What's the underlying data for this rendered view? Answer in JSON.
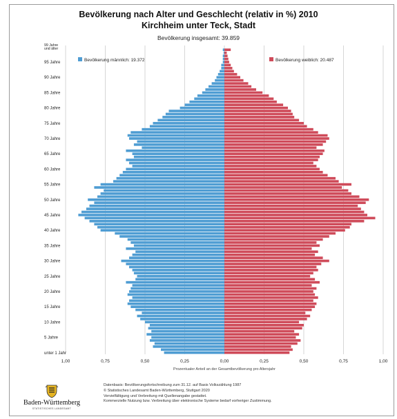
{
  "title": "Bevölkerung nach Alter und Geschlecht (relativ in %) 2010",
  "subtitle": "Kirchheim unter Teck, Stadt",
  "total": "Bevölkerung insgesamt: 39.859",
  "logo": {
    "name": "Baden-Württemberg",
    "sub": "STATISTISCHES LANDESAMT",
    "icon": "coat-of-arms-icon"
  },
  "footer": [
    "Datenbasis: Bevölkerungsfortschreibung zum 31.12. auf Basis Volkszählung 1987",
    "© Statistisches Landesamt Baden-Württemberg, Stuttgart 2020",
    "Vervielfältigung und Verbreitung mit Quellenangabe gestattet.",
    "Kommerzielle Nutzung bzw. Verbreitung über elektronische Systeme bedarf vorheriger Zustimmung."
  ],
  "colors": {
    "male": "#4f9dd3",
    "female": "#cf4b5a",
    "grid": "#bbbbbb",
    "text": "#222222"
  },
  "chart_data": {
    "type": "bar",
    "orientation": "horizontal-pyramid",
    "xlabel": "Prozentualer Anteil an der Gesamtbevölkerung pro Altersjahr",
    "xticks": [
      "1,00",
      "0,75",
      "0,50",
      "0,25",
      "0,00",
      "0,25",
      "0,50",
      "0,75",
      "1,00"
    ],
    "xlim": [
      -1.0,
      1.0
    ],
    "ylim": [
      0,
      99
    ],
    "grid": true,
    "legend_placement": "top",
    "yticks": [
      {
        "age": 0,
        "label": "unter 1 Jahr"
      },
      {
        "age": 5,
        "label": "5 Jahre"
      },
      {
        "age": 10,
        "label": "10 Jahre"
      },
      {
        "age": 15,
        "label": "15 Jahre"
      },
      {
        "age": 20,
        "label": "20 Jahre"
      },
      {
        "age": 25,
        "label": "25 Jahre"
      },
      {
        "age": 30,
        "label": "30 Jahre"
      },
      {
        "age": 35,
        "label": "35 Jahre"
      },
      {
        "age": 40,
        "label": "40 Jahre"
      },
      {
        "age": 45,
        "label": "45 Jahre"
      },
      {
        "age": 50,
        "label": "50 Jahre"
      },
      {
        "age": 55,
        "label": "55 Jahre"
      },
      {
        "age": 60,
        "label": "60 Jahre"
      },
      {
        "age": 65,
        "label": "65 Jahre"
      },
      {
        "age": 70,
        "label": "70 Jahre"
      },
      {
        "age": 75,
        "label": "75 Jahre"
      },
      {
        "age": 80,
        "label": "80 Jahre"
      },
      {
        "age": 85,
        "label": "85 Jahre"
      },
      {
        "age": 90,
        "label": "90 Jahre"
      },
      {
        "age": 95,
        "label": "95 Jahre"
      },
      {
        "age": 99,
        "label": "99 Jahre und älter"
      }
    ],
    "ages": [
      0,
      1,
      2,
      3,
      4,
      5,
      6,
      7,
      8,
      9,
      10,
      11,
      12,
      13,
      14,
      15,
      16,
      17,
      18,
      19,
      20,
      21,
      22,
      23,
      24,
      25,
      26,
      27,
      28,
      29,
      30,
      31,
      32,
      33,
      34,
      35,
      36,
      37,
      38,
      39,
      40,
      41,
      42,
      43,
      44,
      45,
      46,
      47,
      48,
      49,
      50,
      51,
      52,
      53,
      54,
      55,
      56,
      57,
      58,
      59,
      60,
      61,
      62,
      63,
      64,
      65,
      66,
      67,
      68,
      69,
      70,
      71,
      72,
      73,
      74,
      75,
      76,
      77,
      78,
      79,
      80,
      81,
      82,
      83,
      84,
      85,
      86,
      87,
      88,
      89,
      90,
      91,
      92,
      93,
      94,
      95,
      96,
      97,
      98,
      99
    ],
    "series": [
      {
        "name": "Bevölkerung männlich: 19.372",
        "values": [
          0.38,
          0.4,
          0.45,
          0.44,
          0.47,
          0.46,
          0.49,
          0.46,
          0.48,
          0.47,
          0.5,
          0.53,
          0.55,
          0.52,
          0.56,
          0.59,
          0.61,
          0.6,
          0.58,
          0.61,
          0.6,
          0.59,
          0.58,
          0.62,
          0.56,
          0.55,
          0.57,
          0.58,
          0.6,
          0.62,
          0.65,
          0.6,
          0.58,
          0.56,
          0.62,
          0.57,
          0.59,
          0.61,
          0.66,
          0.69,
          0.78,
          0.8,
          0.82,
          0.85,
          0.88,
          0.92,
          0.9,
          0.87,
          0.85,
          0.82,
          0.86,
          0.8,
          0.78,
          0.76,
          0.82,
          0.78,
          0.7,
          0.68,
          0.66,
          0.64,
          0.62,
          0.58,
          0.6,
          0.62,
          0.57,
          0.58,
          0.62,
          0.52,
          0.57,
          0.55,
          0.6,
          0.61,
          0.59,
          0.52,
          0.47,
          0.45,
          0.42,
          0.39,
          0.37,
          0.35,
          0.28,
          0.25,
          0.22,
          0.19,
          0.17,
          0.14,
          0.12,
          0.1,
          0.08,
          0.06,
          0.05,
          0.04,
          0.03,
          0.02,
          0.02,
          0.01,
          0.01,
          0.01,
          0.005,
          0.01
        ]
      },
      {
        "name": "Bevölkerung weiblich: 20.487",
        "values": [
          0.41,
          0.43,
          0.42,
          0.46,
          0.48,
          0.45,
          0.47,
          0.44,
          0.49,
          0.5,
          0.47,
          0.52,
          0.54,
          0.51,
          0.55,
          0.57,
          0.58,
          0.56,
          0.59,
          0.57,
          0.56,
          0.58,
          0.55,
          0.6,
          0.57,
          0.54,
          0.56,
          0.59,
          0.58,
          0.61,
          0.66,
          0.62,
          0.57,
          0.59,
          0.55,
          0.6,
          0.58,
          0.62,
          0.66,
          0.7,
          0.76,
          0.79,
          0.8,
          0.88,
          0.95,
          0.9,
          0.88,
          0.86,
          0.84,
          0.89,
          0.91,
          0.85,
          0.8,
          0.78,
          0.74,
          0.8,
          0.72,
          0.7,
          0.65,
          0.62,
          0.6,
          0.58,
          0.56,
          0.59,
          0.6,
          0.62,
          0.63,
          0.58,
          0.62,
          0.64,
          0.66,
          0.65,
          0.59,
          0.56,
          0.52,
          0.5,
          0.47,
          0.44,
          0.43,
          0.42,
          0.4,
          0.37,
          0.33,
          0.31,
          0.28,
          0.24,
          0.2,
          0.17,
          0.15,
          0.12,
          0.1,
          0.08,
          0.06,
          0.05,
          0.04,
          0.03,
          0.025,
          0.02,
          0.015,
          0.04
        ]
      }
    ]
  }
}
